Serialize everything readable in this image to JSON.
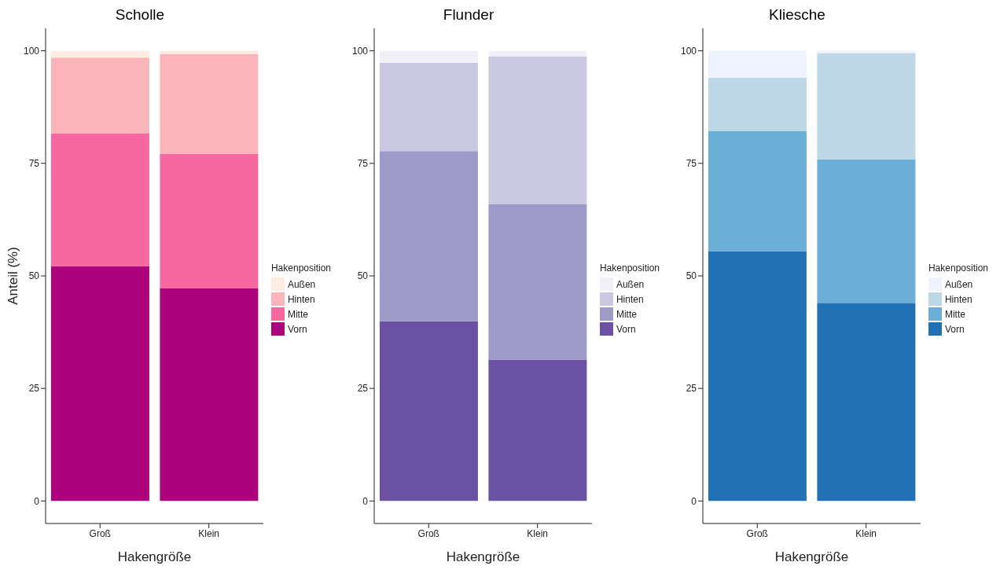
{
  "chart_data": [
    {
      "type": "bar",
      "title": "Scholle",
      "xlabel": "Hakengröße",
      "ylabel": "Anteil (%)",
      "legend_title": "Hakenposition",
      "categories": [
        "Groß",
        "Klein"
      ],
      "stacked": true,
      "ylim": [
        -5,
        105
      ],
      "yticks": [
        0,
        25,
        50,
        75,
        100
      ],
      "legend": "right",
      "series": [
        {
          "name": "Vorn",
          "color": "#ae017e",
          "values": [
            52.2,
            47.2
          ]
        },
        {
          "name": "Mitte",
          "color": "#f768a1",
          "values": [
            29.5,
            29.9
          ]
        },
        {
          "name": "Hinten",
          "color": "#fbb4b9",
          "values": [
            16.8,
            22.2
          ]
        },
        {
          "name": "Außen",
          "color": "#feebe2",
          "values": [
            1.5,
            0.7
          ]
        }
      ]
    },
    {
      "type": "bar",
      "title": "Flunder",
      "xlabel": "Hakengröße",
      "legend_title": "Hakenposition",
      "categories": [
        "Groß",
        "Klein"
      ],
      "stacked": true,
      "ylim": [
        -5,
        105
      ],
      "yticks": [
        0,
        25,
        50,
        75,
        100
      ],
      "legend": "right",
      "series": [
        {
          "name": "Vorn",
          "color": "#6a51a3",
          "values": [
            39.9,
            31.4
          ]
        },
        {
          "name": "Mitte",
          "color": "#9e9ac8",
          "values": [
            37.8,
            34.5
          ]
        },
        {
          "name": "Hinten",
          "color": "#cbc9e2",
          "values": [
            19.6,
            32.8
          ]
        },
        {
          "name": "Außen",
          "color": "#f2f0f7",
          "values": [
            2.7,
            1.3
          ]
        }
      ]
    },
    {
      "type": "bar",
      "title": "Kliesche",
      "xlabel": "Hakengröße",
      "legend_title": "Hakenposition",
      "categories": [
        "Groß",
        "Klein"
      ],
      "stacked": true,
      "ylim": [
        -5,
        105
      ],
      "yticks": [
        0,
        25,
        50,
        75,
        100
      ],
      "legend": "right",
      "series": [
        {
          "name": "Vorn",
          "color": "#2171b5",
          "values": [
            55.5,
            43.9
          ]
        },
        {
          "name": "Mitte",
          "color": "#6baed6",
          "values": [
            26.7,
            32.0
          ]
        },
        {
          "name": "Hinten",
          "color": "#bdd7e7",
          "values": [
            11.8,
            23.6
          ]
        },
        {
          "name": "Außen",
          "color": "#eff3ff",
          "values": [
            6.0,
            0.5
          ]
        }
      ]
    }
  ]
}
